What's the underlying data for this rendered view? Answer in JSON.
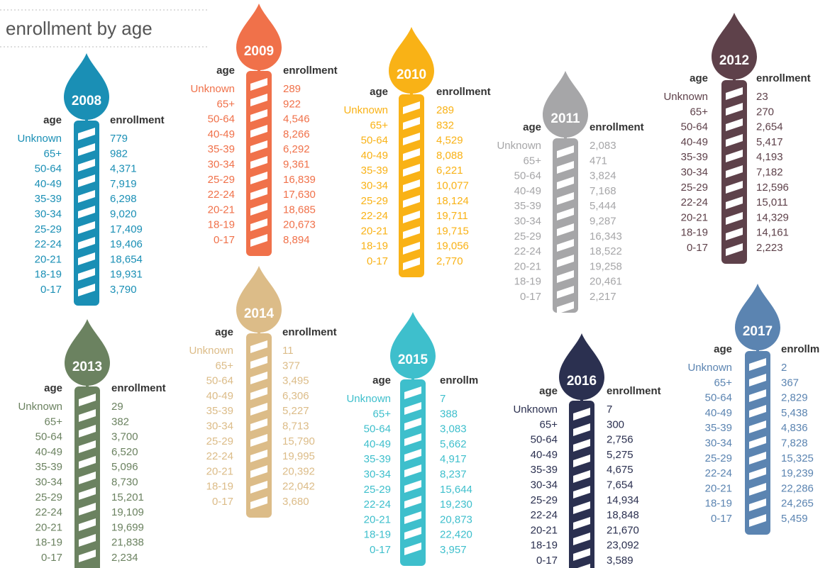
{
  "title": "enrollment by age",
  "candles": [
    {
      "year": "2008",
      "color": "#1a8fb5",
      "headers": [
        "age",
        "enrollment"
      ],
      "rows": [
        [
          "Unknown",
          "779"
        ],
        [
          "65+",
          "982"
        ],
        [
          "50-64",
          "4,371"
        ],
        [
          "40-49",
          "7,919"
        ],
        [
          "35-39",
          "6,298"
        ],
        [
          "30-34",
          "9,020"
        ],
        [
          "25-29",
          "17,409"
        ],
        [
          "22-24",
          "19,406"
        ],
        [
          "20-21",
          "18,654"
        ],
        [
          "18-19",
          "19,931"
        ],
        [
          "0-17",
          "3,790"
        ]
      ]
    },
    {
      "year": "2009",
      "color": "#f0714a",
      "headers": [
        "age",
        "enrollment"
      ],
      "rows": [
        [
          "Unknown",
          "289"
        ],
        [
          "65+",
          "922"
        ],
        [
          "50-64",
          "4,546"
        ],
        [
          "40-49",
          "8,266"
        ],
        [
          "35-39",
          "6,292"
        ],
        [
          "30-34",
          "9,361"
        ],
        [
          "25-29",
          "16,839"
        ],
        [
          "22-24",
          "17,630"
        ],
        [
          "20-21",
          "18,685"
        ],
        [
          "18-19",
          "20,673"
        ],
        [
          "0-17",
          "8,894"
        ]
      ]
    },
    {
      "year": "2010",
      "color": "#f9b216",
      "headers": [
        "age",
        "enrollment"
      ],
      "rows": [
        [
          "Unknown",
          "289"
        ],
        [
          "65+",
          "832"
        ],
        [
          "50-64",
          "4,529"
        ],
        [
          "40-49",
          "8,088"
        ],
        [
          "35-39",
          "6,221"
        ],
        [
          "30-34",
          "10,077"
        ],
        [
          "25-29",
          "18,124"
        ],
        [
          "22-24",
          "19,711"
        ],
        [
          "20-21",
          "19,715"
        ],
        [
          "18-19",
          "19,056"
        ],
        [
          "0-17",
          "2,770"
        ]
      ]
    },
    {
      "year": "2011",
      "color": "#a6a6a8",
      "headers": [
        "age",
        "enrollment"
      ],
      "rows": [
        [
          "Unknown",
          "2,083"
        ],
        [
          "65+",
          "471"
        ],
        [
          "50-64",
          "3,824"
        ],
        [
          "40-49",
          "7,168"
        ],
        [
          "35-39",
          "5,444"
        ],
        [
          "30-34",
          "9,287"
        ],
        [
          "25-29",
          "16,343"
        ],
        [
          "22-24",
          "18,522"
        ],
        [
          "20-21",
          "19,258"
        ],
        [
          "18-19",
          "20,461"
        ],
        [
          "0-17",
          "2,217"
        ]
      ]
    },
    {
      "year": "2012",
      "color": "#5e414a",
      "headers": [
        "age",
        "enrollment"
      ],
      "rows": [
        [
          "Unknown",
          "23"
        ],
        [
          "65+",
          "270"
        ],
        [
          "50-64",
          "2,654"
        ],
        [
          "40-49",
          "5,417"
        ],
        [
          "35-39",
          "4,193"
        ],
        [
          "30-34",
          "7,182"
        ],
        [
          "25-29",
          "12,596"
        ],
        [
          "22-24",
          "15,011"
        ],
        [
          "20-21",
          "14,329"
        ],
        [
          "18-19",
          "14,161"
        ],
        [
          "0-17",
          "2,223"
        ]
      ]
    },
    {
      "year": "2013",
      "color": "#6b8260",
      "headers": [
        "age",
        "enrollment"
      ],
      "rows": [
        [
          "Unknown",
          "29"
        ],
        [
          "65+",
          "382"
        ],
        [
          "50-64",
          "3,700"
        ],
        [
          "40-49",
          "6,520"
        ],
        [
          "35-39",
          "5,096"
        ],
        [
          "30-34",
          "8,730"
        ],
        [
          "25-29",
          "15,201"
        ],
        [
          "22-24",
          "19,109"
        ],
        [
          "20-21",
          "19,699"
        ],
        [
          "18-19",
          "21,838"
        ],
        [
          "0-17",
          "2,234"
        ]
      ]
    },
    {
      "year": "2014",
      "color": "#dcbc88",
      "headers": [
        "age",
        "enrollment"
      ],
      "rows": [
        [
          "Unknown",
          "11"
        ],
        [
          "65+",
          "377"
        ],
        [
          "50-64",
          "3,495"
        ],
        [
          "40-49",
          "6,306"
        ],
        [
          "35-39",
          "5,227"
        ],
        [
          "30-34",
          "8,713"
        ],
        [
          "25-29",
          "15,790"
        ],
        [
          "22-24",
          "19,995"
        ],
        [
          "20-21",
          "20,392"
        ],
        [
          "18-19",
          "22,042"
        ],
        [
          "0-17",
          "3,680"
        ]
      ]
    },
    {
      "year": "2015",
      "color": "#3ebfcc",
      "headers": [
        "age",
        "enrollm"
      ],
      "rows": [
        [
          "Unknown",
          "7"
        ],
        [
          "65+",
          "388"
        ],
        [
          "50-64",
          "3,083"
        ],
        [
          "40-49",
          "5,662"
        ],
        [
          "35-39",
          "4,917"
        ],
        [
          "30-34",
          "8,237"
        ],
        [
          "25-29",
          "15,644"
        ],
        [
          "22-24",
          "19,230"
        ],
        [
          "20-21",
          "20,873"
        ],
        [
          "18-19",
          "22,420"
        ],
        [
          "0-17",
          "3,957"
        ]
      ]
    },
    {
      "year": "2016",
      "color": "#2b3050",
      "headers": [
        "age",
        "enrollment"
      ],
      "rows": [
        [
          "Unknown",
          "7"
        ],
        [
          "65+",
          "300"
        ],
        [
          "50-64",
          "2,756"
        ],
        [
          "40-49",
          "5,275"
        ],
        [
          "35-39",
          "4,675"
        ],
        [
          "30-34",
          "7,654"
        ],
        [
          "25-29",
          "14,934"
        ],
        [
          "22-24",
          "18,848"
        ],
        [
          "20-21",
          "21,670"
        ],
        [
          "18-19",
          "23,092"
        ],
        [
          "0-17",
          "3,589"
        ]
      ]
    },
    {
      "year": "2017",
      "color": "#5b84b1",
      "headers": [
        "age",
        "enrollm"
      ],
      "rows": [
        [
          "Unknown",
          "2"
        ],
        [
          "65+",
          "367"
        ],
        [
          "50-64",
          "2,829"
        ],
        [
          "40-49",
          "5,438"
        ],
        [
          "35-39",
          "4,836"
        ],
        [
          "30-34",
          "7,828"
        ],
        [
          "25-29",
          "15,325"
        ],
        [
          "22-24",
          "19,239"
        ],
        [
          "20-21",
          "22,286"
        ],
        [
          "18-19",
          "24,265"
        ],
        [
          "0-17",
          "5,459"
        ]
      ]
    }
  ]
}
